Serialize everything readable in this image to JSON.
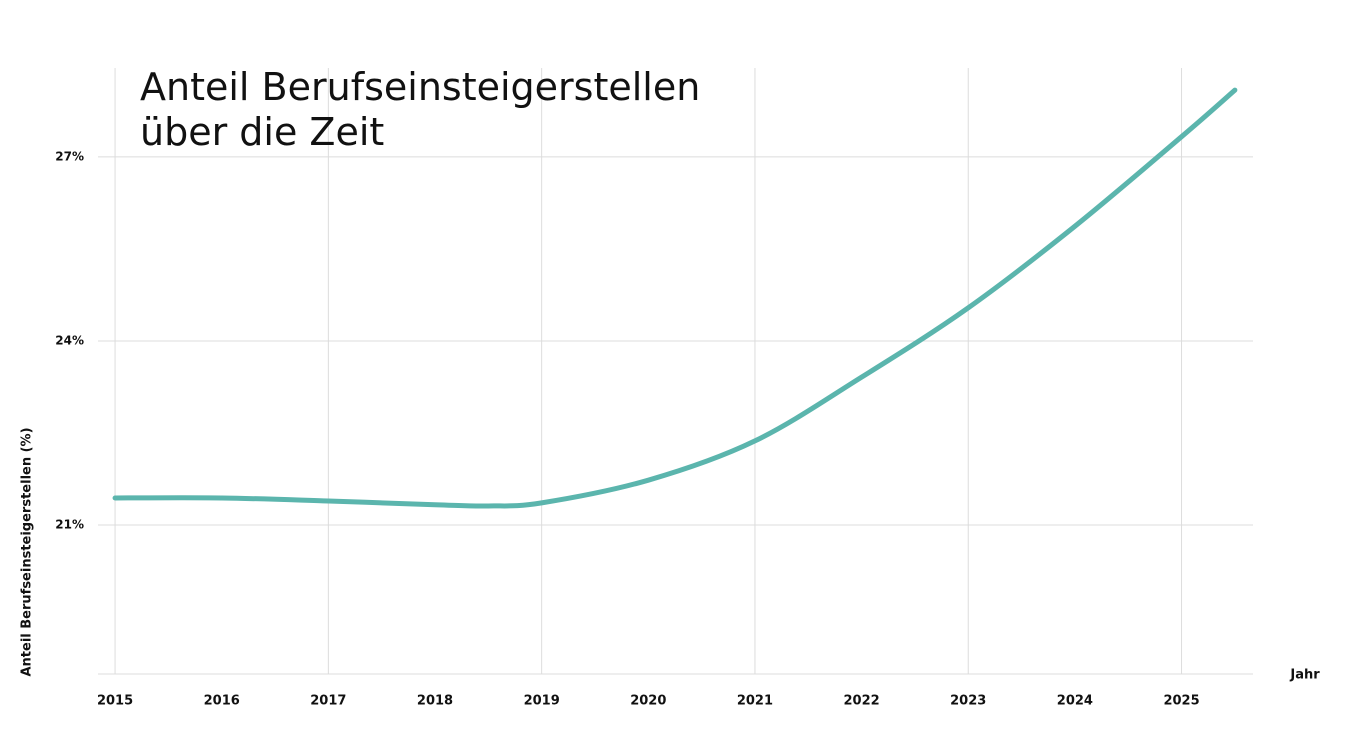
{
  "chart_data": {
    "type": "line",
    "title": [
      "Anteil Berufseinsteigerstellen",
      "über die Zeit"
    ],
    "x_label": "Jahr",
    "y_label": "Anteil Berufseinsteigerstellen (%)",
    "x": [
      2015,
      2016,
      2017,
      2018,
      2018.5,
      2019,
      2020,
      2021,
      2022,
      2023,
      2024,
      2025,
      2025.5
    ],
    "series": [
      {
        "name": "Anteil Berufseinsteigerstellen",
        "color": "#5bb5ad",
        "values": [
          21.44,
          21.44,
          21.39,
          21.33,
          21.31,
          21.36,
          21.73,
          22.37,
          23.41,
          24.54,
          25.87,
          27.33,
          28.09
        ]
      }
    ],
    "xlim": [
      2014.84,
      2025.67
    ],
    "xticks": [
      2015,
      2016,
      2017,
      2018,
      2019,
      2020,
      2021,
      2022,
      2023,
      2024,
      2025
    ],
    "ylim": [
      18.57,
      28.45
    ],
    "yticks": [
      {
        "value": 21,
        "label": "21%"
      },
      {
        "value": 24,
        "label": "24%"
      },
      {
        "value": 27,
        "label": "27%"
      }
    ],
    "grid": true
  }
}
